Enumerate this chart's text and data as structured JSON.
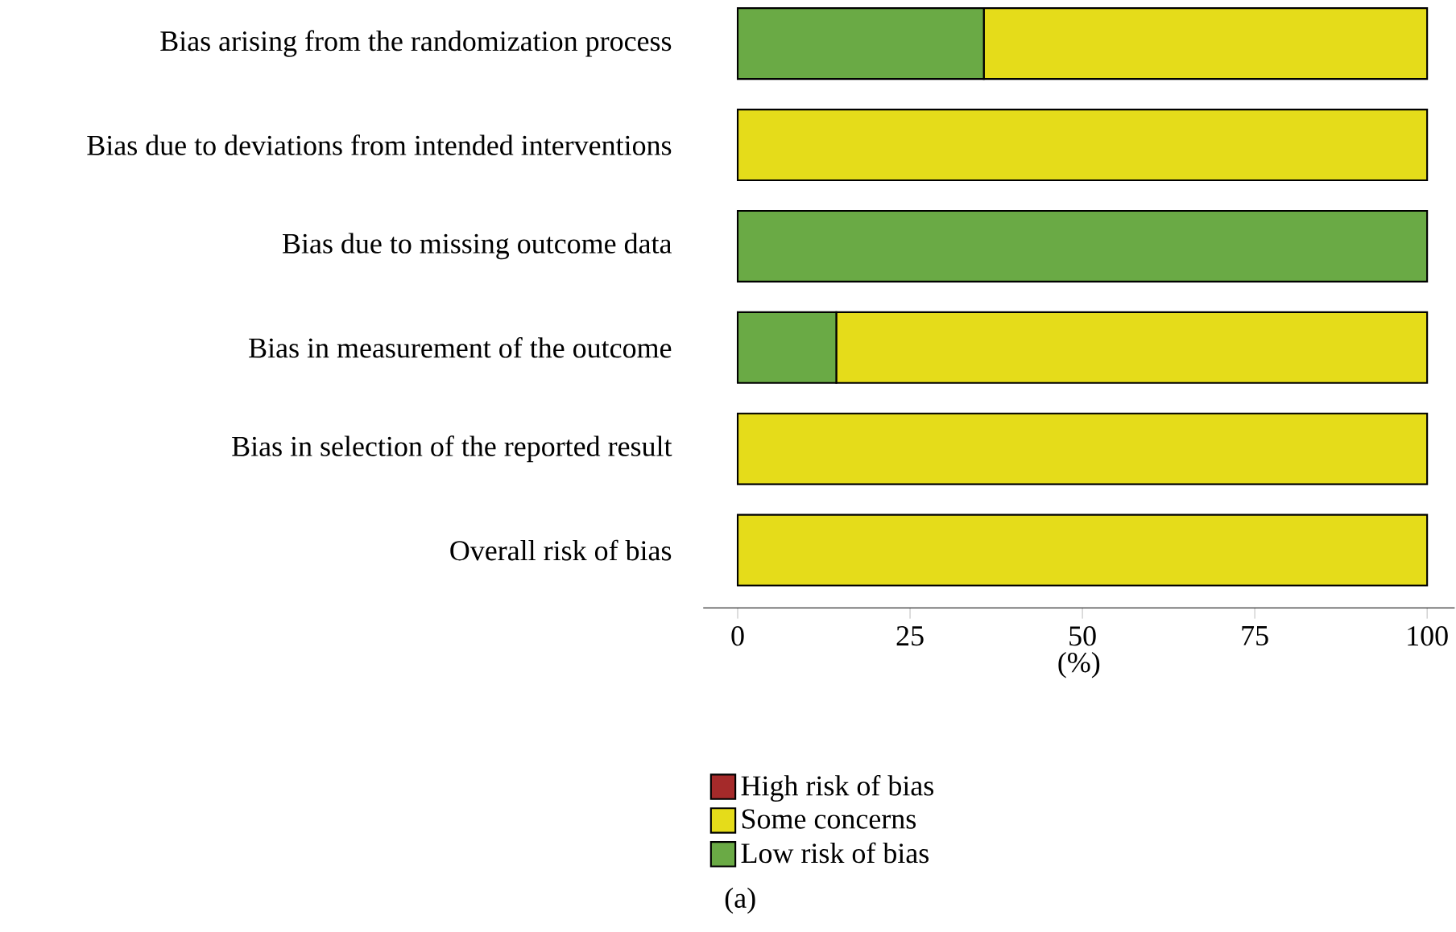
{
  "chart_data": {
    "type": "bar",
    "orientation": "horizontal",
    "stacked": true,
    "categories": [
      "Bias arising from the randomization process",
      "Bias due to deviations from intended interventions",
      "Bias due to missing outcome data",
      "Bias in measurement of the outcome",
      "Bias in selection of the reported result",
      "Overall risk of bias"
    ],
    "series": [
      {
        "name": "Low risk of bias",
        "color": "#6aaa45",
        "values": [
          35.7,
          0,
          100,
          14.3,
          0,
          0
        ]
      },
      {
        "name": "Some concerns",
        "color": "#e5dc1a",
        "values": [
          64.3,
          100,
          0,
          85.7,
          100,
          100
        ]
      },
      {
        "name": "High risk of bias",
        "color": "#a52a2a",
        "values": [
          0,
          0,
          0,
          0,
          0,
          0
        ]
      }
    ],
    "xlim": [
      -5,
      104
    ],
    "xticks": [
      0,
      25,
      50,
      75,
      100
    ],
    "xlabel": "(%)",
    "grid": false,
    "legend": "bottom",
    "annotations": [
      "(a)"
    ]
  }
}
